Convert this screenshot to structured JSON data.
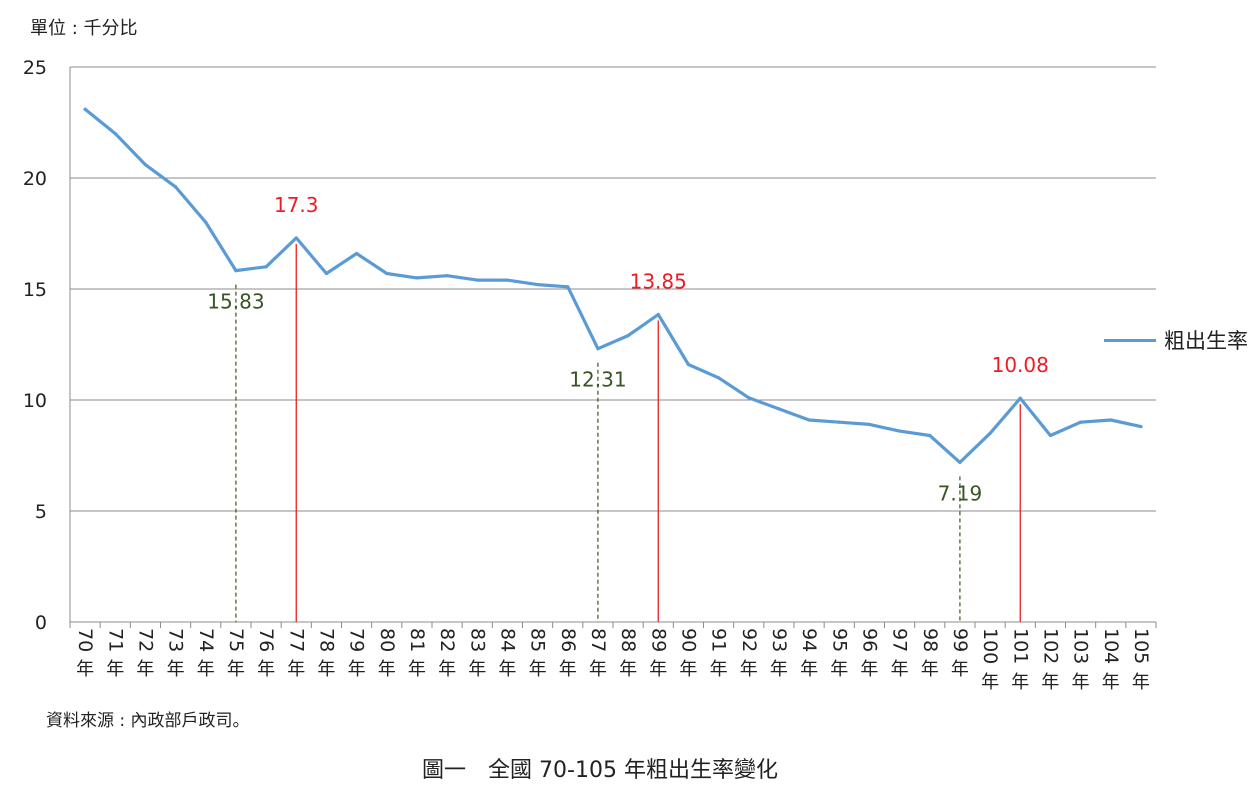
{
  "chart_data": {
    "type": "line",
    "unit_label": "單位 : 千分比",
    "source": "資料來源 : 內政部戶政司。",
    "caption": "圖一　全國 70-105 年粗出生率變化",
    "suffix": "年",
    "categories": [
      "70",
      "71",
      "72",
      "73",
      "74",
      "75",
      "76",
      "77",
      "78",
      "79",
      "80",
      "81",
      "82",
      "83",
      "84",
      "85",
      "86",
      "87",
      "88",
      "89",
      "90",
      "91",
      "92",
      "93",
      "94",
      "95",
      "96",
      "97",
      "98",
      "99",
      "100",
      "101",
      "102",
      "103",
      "104",
      "105"
    ],
    "series": [
      {
        "name": "粗出生率",
        "color": "#5b9bd5",
        "values": [
          23.1,
          22.0,
          20.6,
          19.6,
          18.0,
          15.83,
          16.0,
          17.3,
          15.7,
          16.6,
          15.7,
          15.5,
          15.6,
          15.4,
          15.4,
          15.2,
          15.1,
          12.31,
          12.9,
          13.85,
          11.6,
          11.0,
          10.1,
          9.6,
          9.1,
          9.0,
          8.9,
          8.6,
          8.4,
          7.19,
          8.5,
          10.08,
          8.4,
          9.0,
          9.1,
          8.8
        ]
      }
    ],
    "ylim": [
      0,
      25
    ],
    "yticks": [
      0,
      5,
      10,
      15,
      20,
      25
    ],
    "grid": true,
    "legend_position": "right",
    "annotations": [
      {
        "category": "75",
        "value": 15.83,
        "label": "15.83",
        "kind": "min",
        "color": "#375623"
      },
      {
        "category": "77",
        "value": 17.3,
        "label": "17.3",
        "kind": "max",
        "color": "#ee1c25"
      },
      {
        "category": "87",
        "value": 12.31,
        "label": "12.31",
        "kind": "min",
        "color": "#375623"
      },
      {
        "category": "89",
        "value": 13.85,
        "label": "13.85",
        "kind": "max",
        "color": "#ee1c25"
      },
      {
        "category": "99",
        "value": 7.19,
        "label": "7.19",
        "kind": "min",
        "color": "#375623"
      },
      {
        "category": "101",
        "value": 10.08,
        "label": "10.08",
        "kind": "max",
        "color": "#ee1c25"
      }
    ]
  }
}
